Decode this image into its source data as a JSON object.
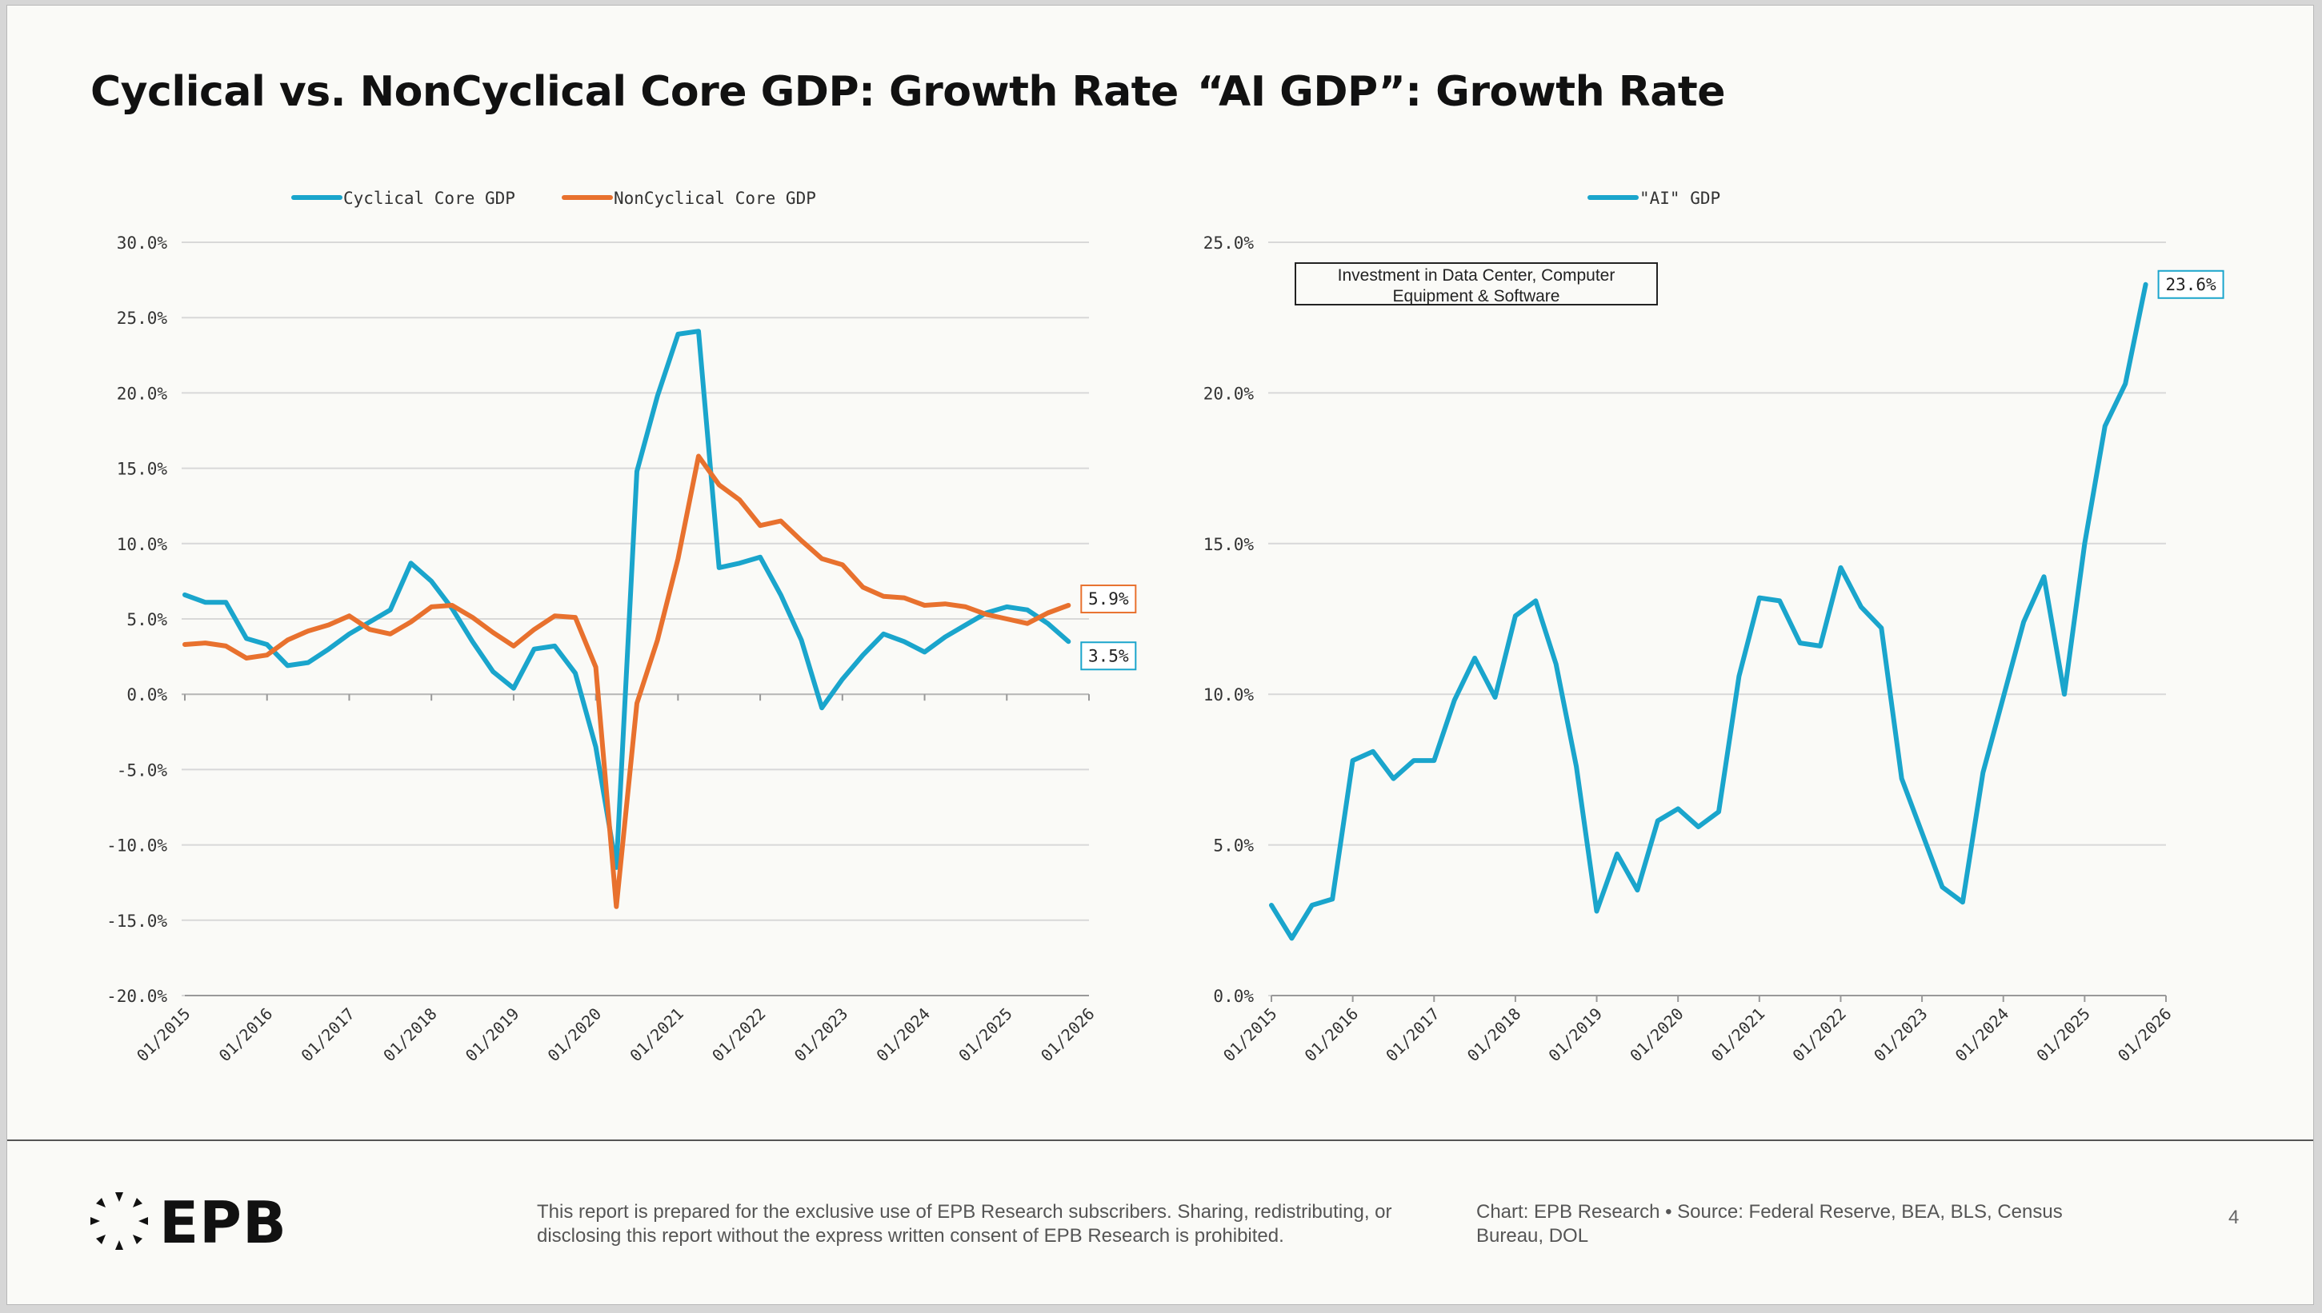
{
  "footer": {
    "logo_text": "EPB",
    "disclaimer": "This report is prepared for the exclusive use of EPB Research subscribers. Sharing, redistributing, or disclosing this report without the express written consent of EPB Research is prohibited.",
    "source": "Chart: EPB Research  •  Source: Federal Reserve, BEA, BLS, Census Bureau, DOL",
    "page_number": "4"
  },
  "colors": {
    "cyclical": "#1aa5cc",
    "noncyclical": "#e8712e",
    "ai": "#1aa5cc"
  },
  "chart_data": [
    {
      "type": "line",
      "title": "Cyclical vs. NonCyclical Core GDP: Growth Rate",
      "xlabel": "",
      "ylabel": "",
      "legend_position": "top-center",
      "grid": true,
      "ylim": [
        -20,
        30
      ],
      "y_ticks": [
        "30.0%",
        "25.0%",
        "20.0%",
        "15.0%",
        "10.0%",
        "5.0%",
        "0.0%",
        "-5.0%",
        "-10.0%",
        "-15.0%",
        "-20.0%"
      ],
      "y_tick_values": [
        30,
        25,
        20,
        15,
        10,
        5,
        0,
        -5,
        -10,
        -15,
        -20
      ],
      "x_ticks": [
        "01/2015",
        "01/2016",
        "01/2017",
        "01/2018",
        "01/2019",
        "01/2020",
        "01/2021",
        "01/2022",
        "01/2023",
        "01/2024",
        "01/2025",
        "01/2026"
      ],
      "x_range": [
        "2015-01",
        "2026-01"
      ],
      "x": [
        "2015-01",
        "2015-04",
        "2015-07",
        "2015-10",
        "2016-01",
        "2016-04",
        "2016-07",
        "2016-10",
        "2017-01",
        "2017-04",
        "2017-07",
        "2017-10",
        "2018-01",
        "2018-04",
        "2018-07",
        "2018-10",
        "2019-01",
        "2019-04",
        "2019-07",
        "2019-10",
        "2020-01",
        "2020-04",
        "2020-07",
        "2020-10",
        "2021-01",
        "2021-04",
        "2021-07",
        "2021-10",
        "2022-01",
        "2022-04",
        "2022-07",
        "2022-10",
        "2023-01",
        "2023-04",
        "2023-07",
        "2023-10",
        "2024-01",
        "2024-04",
        "2024-07",
        "2024-10",
        "2025-01",
        "2025-04",
        "2025-07",
        "2025-10"
      ],
      "series": [
        {
          "name": "Cyclical Core GDP",
          "color": "#1aa5cc",
          "end_label": "3.5%",
          "values": [
            6.6,
            6.1,
            6.1,
            3.7,
            3.3,
            1.9,
            2.1,
            3.0,
            4.0,
            4.8,
            5.6,
            8.7,
            7.5,
            5.7,
            3.5,
            1.5,
            0.4,
            3.0,
            3.2,
            1.4,
            -3.5,
            -11.5,
            14.8,
            19.8,
            23.9,
            24.1,
            8.4,
            8.7,
            9.1,
            6.6,
            3.6,
            -0.9,
            1.0,
            2.6,
            4.0,
            3.5,
            2.8,
            3.8,
            4.6,
            5.4,
            5.8,
            5.6,
            4.7,
            3.5
          ]
        },
        {
          "name": "NonCyclical Core GDP",
          "color": "#e8712e",
          "end_label": "5.9%",
          "values": [
            3.3,
            3.4,
            3.2,
            2.4,
            2.6,
            3.6,
            4.2,
            4.6,
            5.2,
            4.3,
            4.0,
            4.8,
            5.8,
            5.9,
            5.1,
            4.1,
            3.2,
            4.3,
            5.2,
            5.1,
            1.8,
            -14.1,
            -0.6,
            3.6,
            9.0,
            15.8,
            13.9,
            12.9,
            11.2,
            11.5,
            10.2,
            9.0,
            8.6,
            7.1,
            6.5,
            6.4,
            5.9,
            6.0,
            5.8,
            5.3,
            5.0,
            4.7,
            5.4,
            5.9
          ]
        }
      ]
    },
    {
      "type": "line",
      "title": "“AI GDP”: Growth Rate",
      "xlabel": "",
      "ylabel": "",
      "legend_position": "top-center",
      "grid": true,
      "ylim": [
        0,
        25
      ],
      "y_ticks": [
        "25.0%",
        "20.0%",
        "15.0%",
        "10.0%",
        "5.0%",
        "0.0%"
      ],
      "y_tick_values": [
        25,
        20,
        15,
        10,
        5,
        0
      ],
      "x_ticks": [
        "01/2015",
        "01/2016",
        "01/2017",
        "01/2018",
        "01/2019",
        "01/2020",
        "01/2021",
        "01/2022",
        "01/2023",
        "01/2024",
        "01/2025",
        "01/2026"
      ],
      "x_range": [
        "2015-01",
        "2026-01"
      ],
      "annotation": "Investment in Data Center, Computer Equipment & Software",
      "x": [
        "2015-01",
        "2015-04",
        "2015-07",
        "2015-10",
        "2016-01",
        "2016-04",
        "2016-07",
        "2016-10",
        "2017-01",
        "2017-04",
        "2017-07",
        "2017-10",
        "2018-01",
        "2018-04",
        "2018-07",
        "2018-10",
        "2019-01",
        "2019-04",
        "2019-07",
        "2019-10",
        "2020-01",
        "2020-04",
        "2020-07",
        "2020-10",
        "2021-01",
        "2021-04",
        "2021-07",
        "2021-10",
        "2022-01",
        "2022-04",
        "2022-07",
        "2022-10",
        "2023-01",
        "2023-04",
        "2023-07",
        "2023-10",
        "2024-01",
        "2024-04",
        "2024-07",
        "2024-10",
        "2025-01",
        "2025-04",
        "2025-07",
        "2025-10"
      ],
      "series": [
        {
          "name": "\"AI\" GDP",
          "color": "#1aa5cc",
          "end_label": "23.6%",
          "values": [
            3.0,
            1.9,
            3.0,
            3.2,
            7.8,
            8.1,
            7.2,
            7.8,
            7.8,
            9.8,
            11.2,
            9.9,
            12.6,
            13.1,
            11.0,
            7.6,
            2.8,
            4.7,
            3.5,
            5.8,
            6.2,
            5.6,
            6.1,
            10.6,
            13.2,
            13.1,
            11.7,
            11.6,
            14.2,
            12.9,
            12.2,
            7.2,
            5.4,
            3.6,
            3.1,
            7.4,
            9.9,
            12.4,
            13.9,
            10.0,
            15.0,
            18.9,
            20.3,
            23.6
          ]
        }
      ]
    }
  ]
}
